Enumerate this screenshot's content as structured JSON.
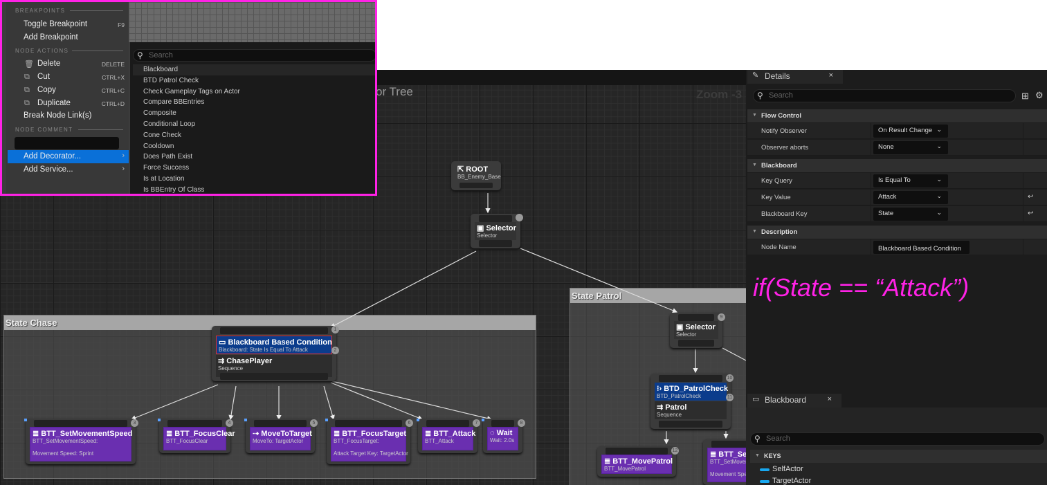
{
  "graph": {
    "title": "or Tree",
    "zoom": "Zoom -3"
  },
  "nodes": {
    "root": {
      "title": "ROOT",
      "subtitle": "BB_Enemy_Base"
    },
    "root_selector": {
      "title": "Selector",
      "subtitle": "Selector"
    },
    "bbc": {
      "title": "Blackboard Based Condition",
      "subtitle": "Blackboard: State Is Equal To Attack",
      "order": "2"
    },
    "chase": {
      "title": "ChasePlayer",
      "subtitle": "Sequence",
      "order": "1"
    },
    "tasks": [
      {
        "title": "BTT_SetMovementSpeed",
        "subtitle": "BTT_SetMovementSpeed:",
        "detail": "Movement Speed: Sprint",
        "order": "3"
      },
      {
        "title": "BTT_FocusClear",
        "subtitle": "BTT_FocusClear",
        "order": "4"
      },
      {
        "title": "MoveToTarget",
        "subtitle": "MoveTo: TargetActor",
        "order": "5"
      },
      {
        "title": "BTT_FocusTarget",
        "subtitle": "BTT_FocusTarget:",
        "detail": "Attack Target Key: TargetActor",
        "order": "6"
      },
      {
        "title": "BTT_Attack",
        "subtitle": "BTT_Attack",
        "order": "7"
      },
      {
        "title": "Wait",
        "subtitle": "Wait: 2.0s",
        "order": "8"
      }
    ],
    "patrol_selector": {
      "title": "Selector",
      "subtitle": "Selector",
      "order": "9"
    },
    "patrol_check": {
      "title": "BTD_PatrolCheck",
      "subtitle": "BTD_PatrolCheck",
      "order": "11"
    },
    "patrol": {
      "title": "Patrol",
      "subtitle": "Sequence",
      "order": "10"
    },
    "move_patrol": {
      "title": "BTT_MovePatrol",
      "subtitle": "BTT_MovePatrol",
      "order": "12"
    },
    "set_partial": {
      "title": "BTT_Se",
      "subtitle": "BTT_SetMovem",
      "detail": "Movement Spe"
    }
  },
  "comments": {
    "chase": "State Chase",
    "patrol": "State Patrol"
  },
  "context_menu": {
    "sections": {
      "breakpoints": "BREAKPOINTS",
      "node_actions": "NODE ACTIONS",
      "node_comment": "NODE COMMENT"
    },
    "items": {
      "toggle_breakpoint": {
        "label": "Toggle Breakpoint",
        "shortcut": "F9"
      },
      "add_breakpoint": {
        "label": "Add Breakpoint"
      },
      "delete": {
        "label": "Delete",
        "shortcut": "DELETE"
      },
      "cut": {
        "label": "Cut",
        "shortcut": "CTRL+X"
      },
      "copy": {
        "label": "Copy",
        "shortcut": "CTRL+C"
      },
      "duplicate": {
        "label": "Duplicate",
        "shortcut": "CTRL+D"
      },
      "break_links": {
        "label": "Break Node Link(s)"
      },
      "add_decorator": {
        "label": "Add Decorator..."
      },
      "add_service": {
        "label": "Add Service..."
      }
    },
    "comment_value": "",
    "submenu": {
      "search_placeholder": "Search",
      "items": [
        "Blackboard",
        "BTD Patrol Check",
        "Check Gameplay Tags on Actor",
        "Compare BBEntries",
        "Composite",
        "Conditional Loop",
        "Cone Check",
        "Cooldown",
        "Does Path Exist",
        "Force Success",
        "Is at Location",
        "Is BBEntry Of Class"
      ]
    }
  },
  "details": {
    "tab": "Details",
    "close": "×",
    "search_placeholder": "Search",
    "categories": {
      "flow": "Flow Control",
      "blackboard": "Blackboard",
      "description": "Description"
    },
    "rows": {
      "notify": {
        "label": "Notify Observer",
        "value": "On Result Change"
      },
      "aborts": {
        "label": "Observer aborts",
        "value": "None"
      },
      "key_query": {
        "label": "Key Query",
        "value": "Is Equal To"
      },
      "key_value": {
        "label": "Key Value",
        "value": "Attack"
      },
      "bb_key": {
        "label": "Blackboard Key",
        "value": "State"
      },
      "node_name": {
        "label": "Node Name",
        "value": "Blackboard Based Condition"
      }
    }
  },
  "annotation": "if(State == “Attack”)",
  "blackboard": {
    "tab": "Blackboard",
    "close": "×",
    "search_placeholder": "Search",
    "keys_header": "KEYS",
    "keys": [
      "SelfActor",
      "TargetActor"
    ]
  },
  "colors": {
    "accent": "#0a70d8",
    "annotation": "#ff22e6",
    "task": "#6a2fb0",
    "decorator": "#0b3c8c",
    "key": "#18a8f0"
  }
}
